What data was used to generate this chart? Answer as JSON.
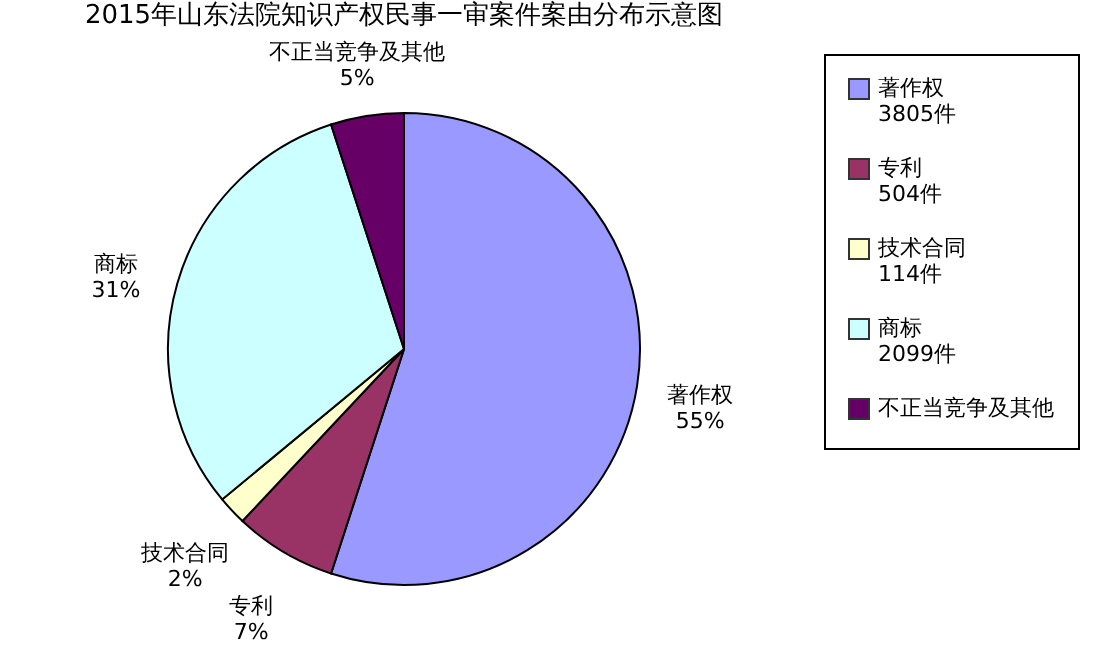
{
  "chart_data": {
    "type": "pie",
    "title": "2015年山东法院知识产权民事一审案件案由分布示意图",
    "categories": [
      "著作权",
      "专利",
      "技术合同",
      "商标",
      "不正当竞争及其他"
    ],
    "values": [
      55,
      7,
      2,
      31,
      5
    ],
    "colors": [
      "#9999ff",
      "#993366",
      "#ffffcc",
      "#ccffff",
      "#660066"
    ],
    "value_labels": [
      "55%",
      "7%",
      "2%",
      "31%",
      "5%"
    ],
    "annotations": [
      "3805件",
      "504件",
      "114件",
      "2099件"
    ],
    "legend": "right"
  }
}
